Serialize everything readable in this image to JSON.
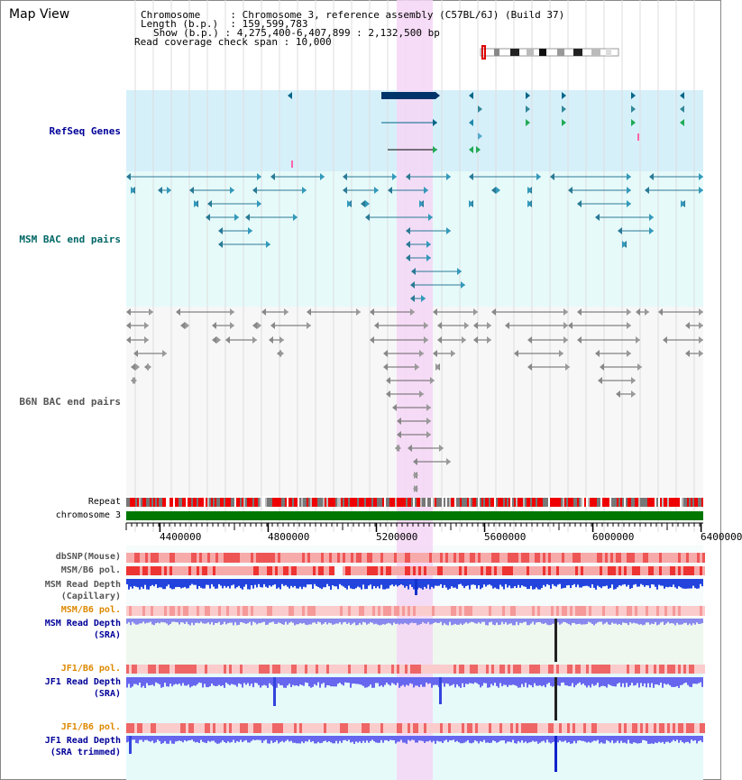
{
  "window": {
    "title": "Map View"
  },
  "info": {
    "chromosome_key": "Chromosome",
    "chromosome_val": "Chromosome 3, reference assembly (C57BL/6J) (Build 37)",
    "length_key": "Length (b.p.)",
    "length_val": "159,599,783",
    "show_key": "Show (b.p.)",
    "show_val": "4,275,400-6,407,899 : 2,132,500 bp",
    "coverage_key": "Read coverage check span",
    "coverage_val": "10,000"
  },
  "tracks": {
    "refseq": "RefSeq Genes",
    "msm_bac": "MSM BAC end pairs",
    "b6n_bac": "B6N BAC end pairs",
    "repeat": "Repeat",
    "chromosome": "chromosome 3",
    "dbsnp": "dbSNP(Mouse)",
    "msm_b6_pol": "MSM/B6 pol.",
    "msm_depth_cap_1": "MSM Read Depth",
    "msm_depth_cap_2": "(Capillary)",
    "msm_b6_pol2": "MSM/B6 pol.",
    "msm_depth_sra_1": "MSM Read Depth",
    "msm_depth_sra_2": "(SRA)",
    "jf1_b6_pol": "JF1/B6 pol.",
    "jf1_depth_sra_1": "JF1 Read Depth",
    "jf1_depth_sra_2": "(SRA)",
    "jf1_b6_pol2": "JF1/B6 pol.",
    "jf1_depth_trim_1": "JF1 Read Depth",
    "jf1_depth_trim_2": "(SRA trimmed)"
  },
  "axis": {
    "ticks": [
      "4400000",
      "4800000",
      "5200000",
      "5600000",
      "6000000",
      "6400000"
    ],
    "range_start": 4275400,
    "range_end": 6407899
  },
  "colors": {
    "refseq_bg": "#d6f0fa",
    "bac_bg": "#e6fafa",
    "highlight": "#f5d6f5",
    "label_blue": "#000099",
    "label_teal": "#006666",
    "label_gray": "#555555",
    "label_orange": "#dd8800",
    "chromosome_green": "#007700",
    "depth_blue": "#3333ee"
  }
}
